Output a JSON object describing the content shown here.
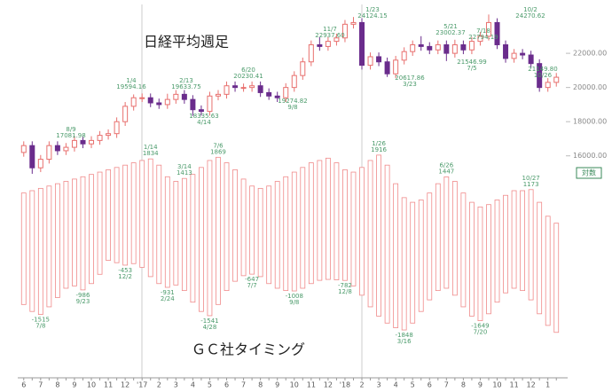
{
  "chart_data": [
    {
      "type": "candlestick",
      "title": "日経平均週足",
      "open": [
        16200,
        16600,
        15300,
        15800,
        16600,
        16300,
        16500,
        16900,
        16700,
        16900,
        17200,
        17300,
        18000,
        18900,
        19400,
        19400,
        19100,
        19000,
        19300,
        19600,
        19300,
        18700,
        18600,
        19500,
        19600,
        20100,
        20000,
        20000,
        20100,
        19700,
        19500,
        19400,
        20000,
        20700,
        21500,
        22500,
        22400,
        22700,
        22900,
        23700,
        23800,
        21300,
        21800,
        21500,
        20800,
        21600,
        22100,
        22500,
        22400,
        22200,
        22500,
        22000,
        22500,
        22200,
        22700,
        23000,
        23800,
        22500,
        21700,
        22000,
        21900,
        21400,
        20000,
        20300
      ],
      "high": [
        16850,
        16850,
        16050,
        16850,
        16850,
        16750,
        17150,
        17150,
        17150,
        17450,
        17550,
        18250,
        19150,
        19594,
        19650,
        19650,
        19350,
        19634,
        19850,
        19850,
        19550,
        18950,
        19750,
        19850,
        20350,
        20350,
        20230,
        20350,
        20350,
        19950,
        19750,
        20250,
        20950,
        21750,
        22750,
        22938,
        22950,
        23150,
        23950,
        24124,
        24050,
        22050,
        22050,
        21750,
        21850,
        22350,
        22750,
        23002,
        22650,
        22750,
        22750,
        22794,
        22750,
        22950,
        23250,
        24270,
        24050,
        22750,
        22250,
        22250,
        22150,
        21650,
        20550,
        20850
      ],
      "low": [
        15950,
        14950,
        15050,
        15550,
        16050,
        16050,
        16250,
        16450,
        16450,
        16650,
        16950,
        17050,
        17750,
        18650,
        19150,
        18850,
        18750,
        18750,
        19050,
        19050,
        18335,
        18350,
        18350,
        19250,
        19350,
        19750,
        19750,
        19750,
        19450,
        19275,
        19150,
        19150,
        19750,
        20450,
        21250,
        22150,
        22150,
        22450,
        22650,
        23450,
        21050,
        21050,
        21250,
        20617,
        20550,
        21350,
        21850,
        22150,
        21950,
        21950,
        21547,
        21750,
        21950,
        21950,
        22450,
        22750,
        22250,
        21450,
        21450,
        21650,
        21150,
        19750,
        19750,
        20050
      ],
      "close": [
        16600,
        15300,
        15800,
        16600,
        16300,
        16500,
        16900,
        16700,
        16900,
        17200,
        17300,
        18000,
        18900,
        19400,
        19400,
        19100,
        19000,
        19300,
        19600,
        19300,
        18700,
        18600,
        19500,
        19600,
        20100,
        20000,
        20000,
        20100,
        19700,
        19500,
        19400,
        20000,
        20700,
        21500,
        22500,
        22400,
        22700,
        22900,
        23700,
        23800,
        21300,
        21800,
        21500,
        20800,
        21600,
        22100,
        22500,
        22400,
        22200,
        22500,
        22000,
        22500,
        22200,
        22700,
        23000,
        23800,
        22500,
        21700,
        22000,
        21900,
        21400,
        20000,
        20300,
        20600
      ],
      "up_color": "#e8706e",
      "down_color": "#6a2c8c",
      "ylim": [
        15000,
        24600
      ],
      "yticks": [
        {
          "value": 16000,
          "label": "16000.00"
        },
        {
          "value": 18000,
          "label": "18000.00"
        },
        {
          "value": 20000,
          "label": "20000.00"
        },
        {
          "value": 22000,
          "label": "22000.00"
        }
      ],
      "annotations": [
        {
          "date": "8/9",
          "text": "17081.98"
        },
        {
          "date": "1/4",
          "text": "19594.16"
        },
        {
          "date": "2/13",
          "text": "19633.75"
        },
        {
          "date": "4/14",
          "text": "18335.63"
        },
        {
          "date": "6/20",
          "text": "20230.41"
        },
        {
          "date": "9/8",
          "text": "19274.82"
        },
        {
          "date": "11/7",
          "text": "22937.60"
        },
        {
          "date": "1/23",
          "text": "24124.15"
        },
        {
          "date": "3/23",
          "text": "20617.86"
        },
        {
          "date": "5/21",
          "text": "23002.37"
        },
        {
          "date": "7/18",
          "text": "22794.19"
        },
        {
          "date": "7/5",
          "text": "21546.99"
        },
        {
          "date": "10/2",
          "text": "24270.62"
        },
        {
          "date": "10/26",
          "text": "21149.80"
        }
      ],
      "scale_button": "対数"
    },
    {
      "type": "range_bar",
      "title": "ＧＣ社タイミング",
      "categories": [
        "6",
        null,
        "7",
        null,
        "8",
        null,
        "9",
        null,
        "10",
        null,
        "11",
        null,
        "12",
        null,
        "'17",
        null,
        "2",
        null,
        "3",
        null,
        "4",
        null,
        "5",
        null,
        "6",
        null,
        "7",
        null,
        "8",
        null,
        "9",
        null,
        "10",
        null,
        "11",
        null,
        "12",
        null,
        "'18",
        null,
        "2",
        null,
        "3",
        null,
        "4",
        null,
        "5",
        null,
        "6",
        null,
        "7",
        null,
        "8",
        null,
        "9",
        null,
        "10",
        null,
        "11",
        null,
        "12",
        null,
        "1",
        null
      ],
      "upper": [
        1100,
        1150,
        1200,
        1250,
        1300,
        1350,
        1400,
        1450,
        1500,
        1550,
        1600,
        1650,
        1700,
        1750,
        1800,
        1834,
        1700,
        1450,
        1350,
        1413,
        1500,
        1650,
        1800,
        1869,
        1750,
        1600,
        1400,
        1250,
        1200,
        1250,
        1350,
        1450,
        1550,
        1650,
        1750,
        1800,
        1850,
        1750,
        1600,
        1550,
        1650,
        1800,
        1916,
        1700,
        1300,
        1000,
        900,
        950,
        1100,
        1300,
        1447,
        1350,
        1100,
        900,
        800,
        850,
        950,
        1050,
        1150,
        1150,
        1173,
        900,
        600,
        450
      ],
      "lower": [
        -1300,
        -1450,
        -1515,
        -1350,
        -1150,
        -950,
        -900,
        -986,
        -850,
        -650,
        -350,
        -400,
        -453,
        -420,
        -500,
        -700,
        -850,
        -931,
        -880,
        -1000,
        -1250,
        -1450,
        -1541,
        -1300,
        -1000,
        -800,
        -680,
        -647,
        -700,
        -850,
        -950,
        -1000,
        -1008,
        -950,
        -850,
        -780,
        -760,
        -770,
        -782,
        -900,
        -1100,
        -1350,
        -1550,
        -1700,
        -1800,
        -1848,
        -1700,
        -1450,
        -1200,
        -1000,
        -950,
        -1100,
        -1350,
        -1550,
        -1649,
        -1500,
        -1250,
        -1050,
        -950,
        -1000,
        -1200,
        -1500,
        -1750,
        -1900
      ],
      "color": "#f08a8a",
      "ylim": [
        -2000,
        2200
      ],
      "upper_annotations": [
        {
          "date": "1/14",
          "value": 1834
        },
        {
          "date": "3/14",
          "value": 1413
        },
        {
          "date": "7/6",
          "value": 1869
        },
        {
          "date": "1/26",
          "value": 1916
        },
        {
          "date": "6/26",
          "value": 1447
        },
        {
          "date": "10/27",
          "value": 1173
        }
      ],
      "lower_annotations": [
        {
          "date": "7/8",
          "value": -1515
        },
        {
          "date": "9/23",
          "value": -986
        },
        {
          "date": "12/2",
          "value": -453
        },
        {
          "date": "2/24",
          "value": -931
        },
        {
          "date": "4/28",
          "value": -1541
        },
        {
          "date": "7/7",
          "value": -647
        },
        {
          "date": "9/8",
          "value": -1008
        },
        {
          "date": "12/8",
          "value": -782
        },
        {
          "date": "3/16",
          "value": -1848
        },
        {
          "date": "7/20",
          "value": -1649
        }
      ]
    }
  ]
}
